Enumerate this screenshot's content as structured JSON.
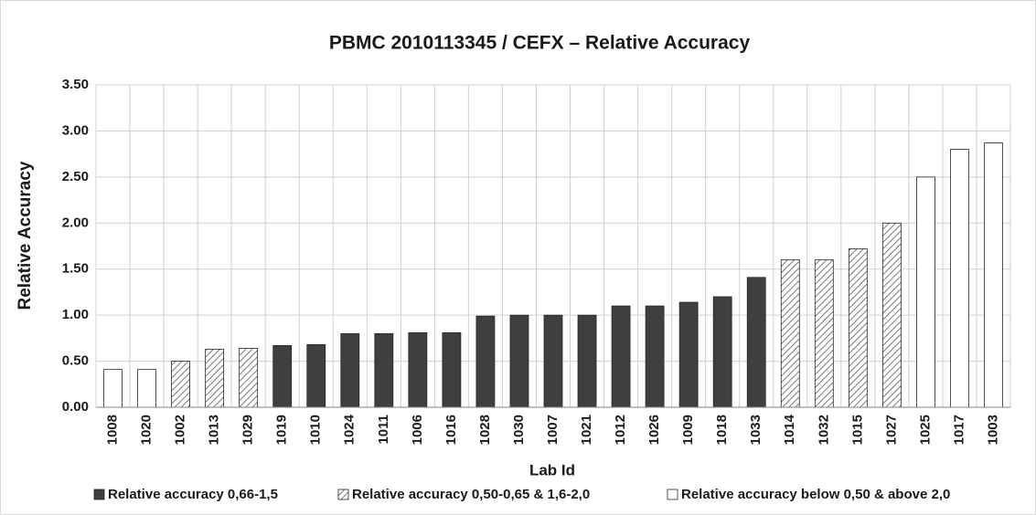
{
  "chart_data": {
    "type": "bar",
    "title": "PBMC 2010113345 / CEFX – Relative Accuracy",
    "x_label": "Lab Id",
    "y_label": "Relative Accuracy",
    "categories": [
      "1008",
      "1020",
      "1002",
      "1013",
      "1029",
      "1019",
      "1010",
      "1024",
      "1011",
      "1006",
      "1016",
      "1028",
      "1030",
      "1007",
      "1021",
      "1012",
      "1026",
      "1009",
      "1018",
      "1033",
      "1014",
      "1032",
      "1015",
      "1027",
      "1025",
      "1017",
      "1003"
    ],
    "series": [
      {
        "name": "Relative accuracy 0,66-1,5",
        "color": "#3f3f3f",
        "hatch": false,
        "values": [
          null,
          null,
          null,
          null,
          null,
          0.67,
          0.68,
          0.8,
          0.8,
          0.81,
          0.81,
          0.99,
          1.0,
          1.0,
          1.0,
          1.1,
          1.1,
          1.14,
          1.2,
          1.41,
          null,
          null,
          null,
          null,
          null,
          null,
          null
        ]
      },
      {
        "name": "Relative accuracy 0,50-0,65 & 1,6-2,0",
        "color": "#595959",
        "hatch": true,
        "values": [
          null,
          null,
          0.5,
          0.63,
          0.64,
          null,
          null,
          null,
          null,
          null,
          null,
          null,
          null,
          null,
          null,
          null,
          null,
          null,
          null,
          null,
          1.6,
          1.6,
          1.72,
          2.0,
          null,
          null,
          null
        ]
      },
      {
        "name": "Relative accuracy below 0,50 & above 2,0",
        "color": "#ffffff",
        "hatch": false,
        "values": [
          0.41,
          0.41,
          null,
          null,
          null,
          null,
          null,
          null,
          null,
          null,
          null,
          null,
          null,
          null,
          null,
          null,
          null,
          null,
          null,
          null,
          null,
          null,
          null,
          null,
          2.5,
          2.8,
          2.87
        ]
      }
    ],
    "ylim": [
      0,
      3.5
    ],
    "yticks": [
      {
        "value": 0,
        "label": "0.00"
      },
      {
        "value": 0.5,
        "label": "0.50"
      },
      {
        "value": 1,
        "label": "1.00"
      },
      {
        "value": 1.5,
        "label": "1.50"
      },
      {
        "value": 2,
        "label": "2.00"
      },
      {
        "value": 2.5,
        "label": "2.50"
      },
      {
        "value": 3,
        "label": "3.00"
      },
      {
        "value": 3.5,
        "label": "3.50"
      }
    ],
    "grid": true
  }
}
